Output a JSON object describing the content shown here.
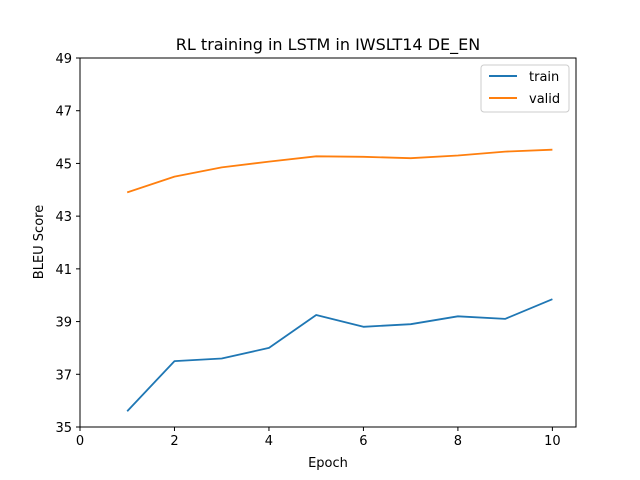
{
  "chart_data": {
    "type": "line",
    "title": "RL training in LSTM in IWSLT14 DE_EN",
    "xlabel": "Epoch",
    "ylabel": "BLEU Score",
    "xlim": [
      0,
      10.5
    ],
    "ylim": [
      35,
      49
    ],
    "xticks": [
      0,
      2,
      4,
      6,
      8,
      10
    ],
    "yticks": [
      35,
      37,
      39,
      41,
      43,
      45,
      47,
      49
    ],
    "grid": false,
    "legend_position": "top-right",
    "x": [
      1,
      2,
      3,
      4,
      5,
      6,
      7,
      8,
      9,
      10
    ],
    "series": [
      {
        "name": "train",
        "color": "#1f77b4",
        "values": [
          35.6,
          37.5,
          37.6,
          38.0,
          39.25,
          38.8,
          38.9,
          39.2,
          39.1,
          39.85
        ]
      },
      {
        "name": "valid",
        "color": "#ff7f0e",
        "values": [
          43.9,
          44.5,
          44.85,
          45.07,
          45.27,
          45.25,
          45.2,
          45.3,
          45.45,
          45.52
        ]
      }
    ]
  }
}
